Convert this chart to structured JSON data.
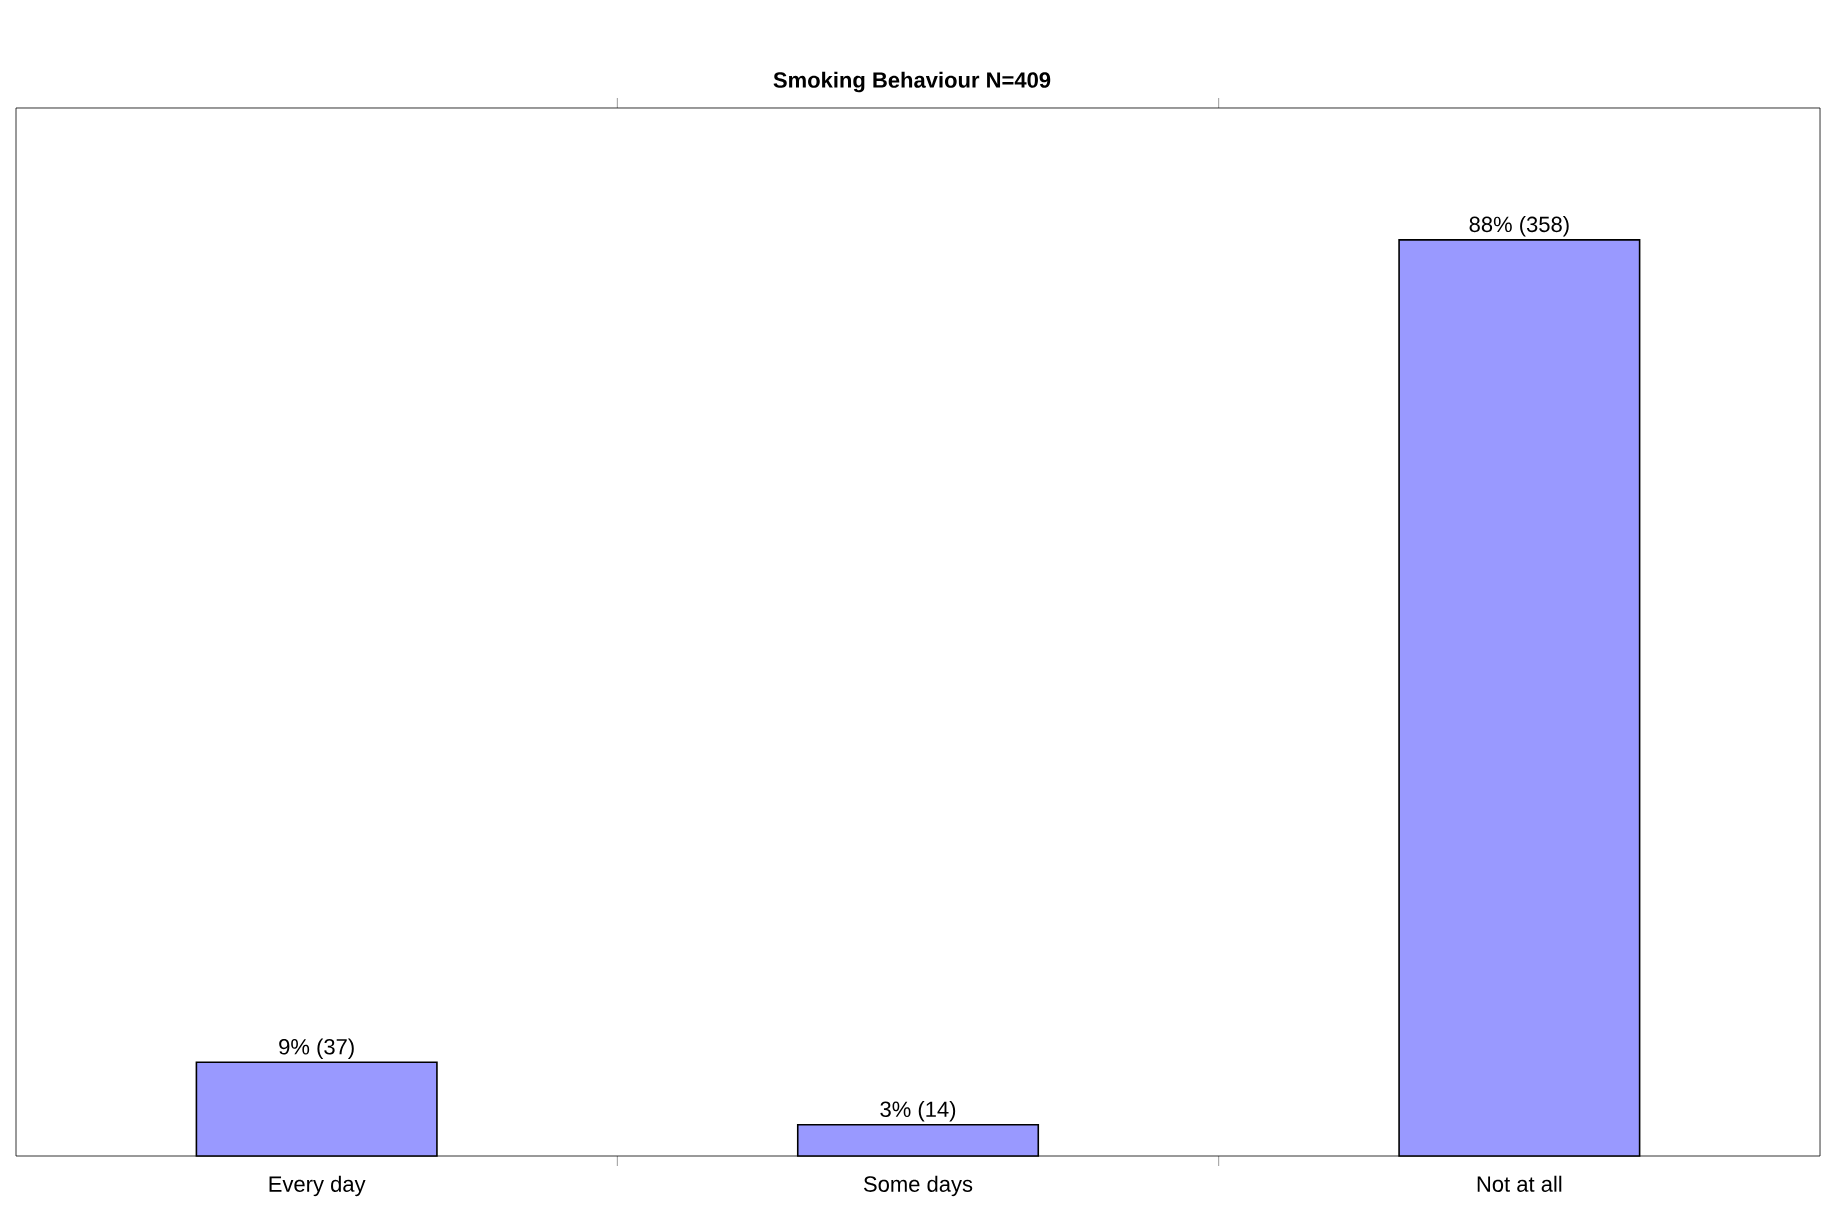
{
  "chart_data": {
    "type": "bar",
    "title": "Smoking Behaviour N=409",
    "categories": [
      "Every day",
      "Some days",
      "Not at all"
    ],
    "values": [
      9,
      3,
      88
    ],
    "value_labels": [
      "9% (37)",
      "3% (14)",
      "88% (358)"
    ],
    "color": "#9999ff"
  }
}
